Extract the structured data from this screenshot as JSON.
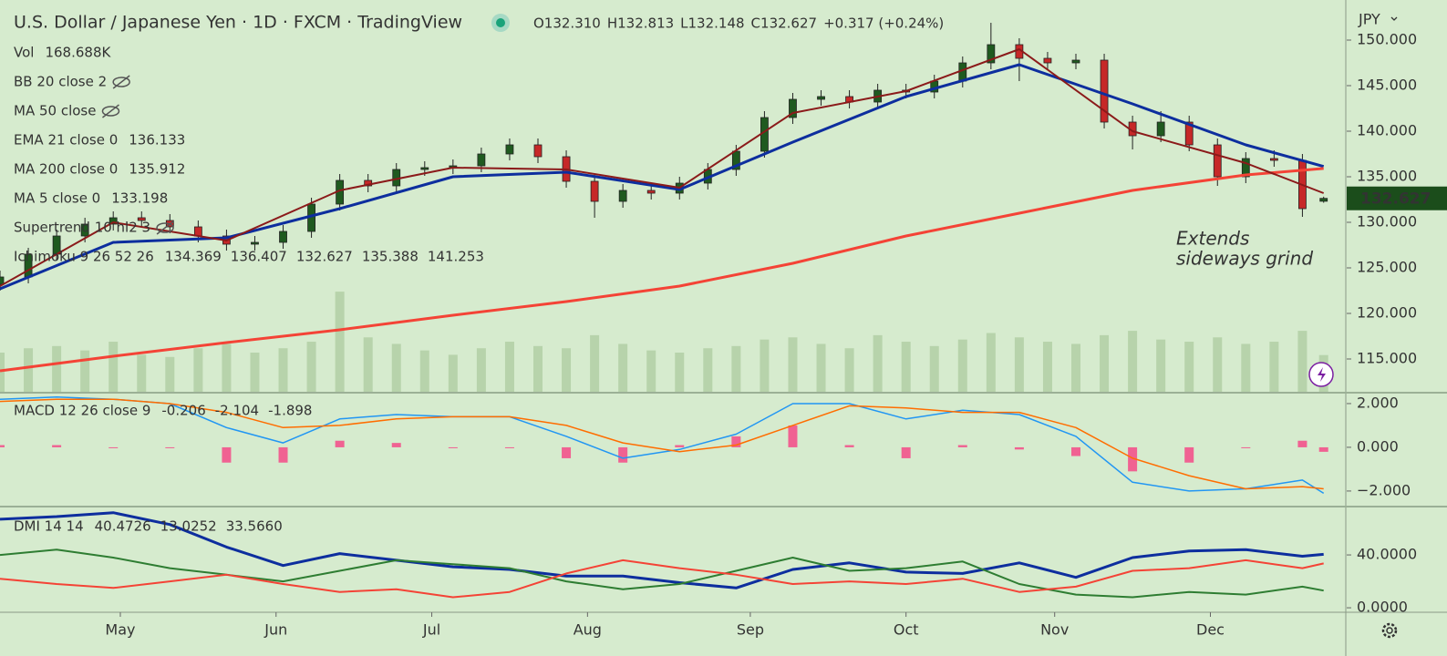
{
  "chart_data": [
    {
      "type": "candlestick",
      "title": "U.S. Dollar / Japanese Yen · 1D · FXCM · TradingView",
      "header_labels": [
        "O132.310",
        "H132.813",
        "L132.148",
        "C132.627",
        "+0.317 (+0.24%)"
      ],
      "currency": "JPY",
      "last_label": "132.627",
      "annotation": [
        "Extends",
        "sideways grind"
      ],
      "xlim": [
        0,
        190
      ],
      "ylim": [
        111.4,
        154.4
      ],
      "vlim": [
        0,
        1800
      ],
      "yticks": [
        {
          "value": 115,
          "label": "115.000"
        },
        {
          "value": 120,
          "label": "120.000"
        },
        {
          "value": 125,
          "label": "125.000"
        },
        {
          "value": 130,
          "label": "130.000"
        },
        {
          "value": 135,
          "label": "135.000"
        },
        {
          "value": 140,
          "label": "140.000"
        },
        {
          "value": 145,
          "label": "145.000"
        },
        {
          "value": 150,
          "label": "150.000"
        }
      ],
      "up_color": "#1f5a1f",
      "down_color": "#c62828",
      "x": [
        0,
        4,
        8,
        12,
        16,
        20,
        24,
        28,
        32,
        36,
        40,
        44,
        48,
        52,
        56,
        60,
        64,
        68,
        72,
        76,
        80,
        84,
        88,
        92,
        96,
        100,
        104,
        108,
        112,
        116,
        120,
        124,
        128,
        132,
        136,
        140,
        144,
        148,
        152,
        156,
        160,
        164,
        168,
        172,
        176,
        180,
        184,
        187
      ],
      "open": [
        123.2,
        124.0,
        126.5,
        128.5,
        129.8,
        130.5,
        130.2,
        129.5,
        128.5,
        127.6,
        127.8,
        129.0,
        132.0,
        134.6,
        134.0,
        135.8,
        136.0,
        136.2,
        137.5,
        138.5,
        137.2,
        134.5,
        132.3,
        133.5,
        133.2,
        134.3,
        135.8,
        137.8,
        141.5,
        143.5,
        143.8,
        143.2,
        144.5,
        144.3,
        145.5,
        147.5,
        149.5,
        148.0,
        147.5,
        147.8,
        141.0,
        139.5,
        141.0,
        138.5,
        135.0,
        137.0,
        136.8,
        132.31
      ],
      "high": [
        124.7,
        127.2,
        129.2,
        130.5,
        131.2,
        131.2,
        130.9,
        130.2,
        129.2,
        128.5,
        129.7,
        132.7,
        135.3,
        135.3,
        136.5,
        136.7,
        136.9,
        138.2,
        139.2,
        139.2,
        137.9,
        135.2,
        134.2,
        134.2,
        135.0,
        136.5,
        138.5,
        142.2,
        144.2,
        144.5,
        144.5,
        145.2,
        145.2,
        146.2,
        148.2,
        151.9,
        150.2,
        148.7,
        148.5,
        148.5,
        141.7,
        142.2,
        141.7,
        139.2,
        137.7,
        137.9,
        137.5,
        132.813
      ],
      "low": [
        122.5,
        123.3,
        125.8,
        127.8,
        129.1,
        129.5,
        128.8,
        127.8,
        126.9,
        126.9,
        127.1,
        128.3,
        131.3,
        133.3,
        133.3,
        135.1,
        135.3,
        135.5,
        136.8,
        136.5,
        133.8,
        130.5,
        131.6,
        132.5,
        132.5,
        133.6,
        135.1,
        137.1,
        140.8,
        142.8,
        142.5,
        142.5,
        143.6,
        143.6,
        144.8,
        146.8,
        145.5,
        146.8,
        146.8,
        140.3,
        138.0,
        138.8,
        137.8,
        134.0,
        134.3,
        136.1,
        130.6,
        132.148
      ],
      "close": [
        124.0,
        126.5,
        128.5,
        129.8,
        130.5,
        130.2,
        129.5,
        128.5,
        127.6,
        127.8,
        129.0,
        132.0,
        134.6,
        134.0,
        135.8,
        136.0,
        136.2,
        137.5,
        138.5,
        137.2,
        134.5,
        132.3,
        133.5,
        133.2,
        134.3,
        135.8,
        137.8,
        141.5,
        143.5,
        143.8,
        143.2,
        144.5,
        144.3,
        145.5,
        147.5,
        149.5,
        148.0,
        147.5,
        147.8,
        141.0,
        139.5,
        141.0,
        138.5,
        135.0,
        137.0,
        136.8,
        131.5,
        132.627
      ],
      "series": [
        {
          "name": "Vol",
          "kind": "bar",
          "axis": "volume",
          "color": "#b7d3ab",
          "label_color": "#1b7a1b",
          "value_label": "168.688K",
          "values": [
            180,
            200,
            210,
            190,
            230,
            170,
            160,
            200,
            220,
            180,
            200,
            230,
            460,
            250,
            220,
            190,
            170,
            200,
            230,
            210,
            200,
            260,
            220,
            190,
            180,
            200,
            210,
            240,
            250,
            220,
            200,
            260,
            230,
            210,
            240,
            270,
            250,
            230,
            220,
            260,
            280,
            240,
            230,
            250,
            220,
            230,
            280,
            168.688
          ]
        },
        {
          "name": "BB 20 close 2",
          "hidden": true
        },
        {
          "name": "MA 50 close",
          "hidden": true
        },
        {
          "name": "EMA 21 close 0",
          "kind": "line",
          "color": "#0d2e9e",
          "value_label": "136.133",
          "x": [
            0,
            16,
            32,
            48,
            64,
            80,
            96,
            112,
            128,
            144,
            160,
            176,
            187
          ],
          "values": [
            122.7,
            127.8,
            128.3,
            131.5,
            135.0,
            135.5,
            133.6,
            138.8,
            143.8,
            147.3,
            143.0,
            138.5,
            136.133
          ]
        },
        {
          "name": "MA 200 close 0",
          "kind": "line",
          "color": "#f44336",
          "value_label": "135.912",
          "x": [
            0,
            16,
            32,
            48,
            64,
            80,
            96,
            112,
            128,
            144,
            160,
            176,
            187
          ],
          "values": [
            113.7,
            115.3,
            116.8,
            118.2,
            119.8,
            121.3,
            123.0,
            125.5,
            128.5,
            131.0,
            133.5,
            135.2,
            135.912
          ]
        },
        {
          "name": "MA 5 close 0",
          "kind": "line",
          "color": "#8b1a1a",
          "value_label": "133.198",
          "x": [
            0,
            16,
            32,
            48,
            64,
            80,
            96,
            112,
            128,
            144,
            160,
            176,
            187
          ],
          "values": [
            123.0,
            130.0,
            128.0,
            133.5,
            136.0,
            135.8,
            133.8,
            142.0,
            144.4,
            149.0,
            140.0,
            136.5,
            133.198
          ]
        },
        {
          "name": "Supertrend 10 hl2 3",
          "hidden": true
        },
        {
          "name": "Ichimoku 9 26 52 26",
          "value_labels": [
            "134.369",
            "136.407",
            "132.627",
            "135.388",
            "141.253"
          ],
          "label_colors": [
            "#2962ff",
            "#b71c1c",
            "#43a047",
            "#a5d6a7",
            "#ef9a9a"
          ]
        }
      ]
    },
    {
      "type": "line",
      "legend": "MACD 12 26 close 9",
      "xlim": [
        0,
        190
      ],
      "ylim": [
        -2.67,
        2.54
      ],
      "yticks": [
        {
          "value": 2,
          "label": "2.000"
        },
        {
          "value": 0,
          "label": "0.000"
        },
        {
          "value": -2,
          "label": "−2.000"
        }
      ],
      "series": [
        {
          "kind": "bar",
          "color": "#f06292",
          "value_label": "-0.206",
          "x": [
            0,
            8,
            16,
            24,
            32,
            40,
            48,
            56,
            64,
            72,
            80,
            88,
            96,
            104,
            112,
            120,
            128,
            136,
            144,
            152,
            160,
            168,
            176,
            184,
            187
          ],
          "values": [
            0.1,
            0.1,
            0,
            0,
            -0.7,
            -0.7,
            0.3,
            0.2,
            0,
            0,
            -0.5,
            -0.7,
            0.1,
            0.5,
            1.0,
            0.1,
            -0.5,
            0.1,
            -0.1,
            -0.4,
            -1.1,
            -0.7,
            0,
            0.3,
            -0.206
          ]
        },
        {
          "kind": "line",
          "color": "#2196f3",
          "value_label": "-2.104",
          "x": [
            0,
            8,
            16,
            24,
            32,
            40,
            48,
            56,
            64,
            72,
            80,
            88,
            96,
            104,
            112,
            120,
            128,
            136,
            144,
            152,
            160,
            168,
            176,
            184,
            187
          ],
          "values": [
            2.2,
            2.3,
            2.2,
            2.0,
            0.9,
            0.2,
            1.3,
            1.5,
            1.4,
            1.4,
            0.5,
            -0.5,
            -0.1,
            0.6,
            2.0,
            2.0,
            1.3,
            1.7,
            1.5,
            0.5,
            -1.6,
            -2.0,
            -1.9,
            -1.5,
            -2.104
          ]
        },
        {
          "kind": "line",
          "color": "#ff6d00",
          "value_label": "-1.898",
          "x": [
            0,
            8,
            16,
            24,
            32,
            40,
            48,
            56,
            64,
            72,
            80,
            88,
            96,
            104,
            112,
            120,
            128,
            136,
            144,
            152,
            160,
            168,
            176,
            184,
            187
          ],
          "values": [
            2.1,
            2.2,
            2.2,
            2.0,
            1.6,
            0.9,
            1.0,
            1.3,
            1.4,
            1.4,
            1.0,
            0.2,
            -0.2,
            0.1,
            1.0,
            1.9,
            1.8,
            1.6,
            1.6,
            0.9,
            -0.5,
            -1.3,
            -1.9,
            -1.8,
            -1.898
          ]
        }
      ]
    },
    {
      "type": "line",
      "legend": "DMI 14 14",
      "xlim": [
        0,
        190
      ],
      "ylim": [
        -3.4,
        75.9
      ],
      "yticks": [
        {
          "value": 40,
          "label": "40.0000"
        },
        {
          "value": 0,
          "label": "0.0000"
        }
      ],
      "xticks": [
        {
          "value": 17,
          "label": "May"
        },
        {
          "value": 39,
          "label": "Jun"
        },
        {
          "value": 61,
          "label": "Jul"
        },
        {
          "value": 83,
          "label": "Aug"
        },
        {
          "value": 106,
          "label": "Sep"
        },
        {
          "value": 128,
          "label": "Oct"
        },
        {
          "value": 149,
          "label": "Nov"
        },
        {
          "value": 171,
          "label": "Dec"
        }
      ],
      "series": [
        {
          "kind": "line",
          "color": "#0d2e9e",
          "value_label": "40.4726",
          "x": [
            0,
            8,
            16,
            24,
            32,
            40,
            48,
            56,
            64,
            72,
            80,
            88,
            96,
            104,
            112,
            120,
            128,
            136,
            144,
            152,
            160,
            168,
            176,
            184,
            187
          ],
          "values": [
            67,
            69,
            72,
            63,
            46,
            32,
            41,
            36,
            31,
            29,
            24,
            24,
            19,
            15,
            29,
            34,
            27,
            26,
            34,
            23,
            38,
            43,
            44,
            39,
            40.4726
          ]
        },
        {
          "kind": "line",
          "color": "#2e7d32",
          "value_label": "13.0252",
          "x": [
            0,
            8,
            16,
            24,
            32,
            40,
            48,
            56,
            64,
            72,
            80,
            88,
            96,
            104,
            112,
            120,
            128,
            136,
            144,
            152,
            160,
            168,
            176,
            184,
            187
          ],
          "values": [
            40,
            44,
            38,
            30,
            25,
            20,
            28,
            36,
            33,
            30,
            20,
            14,
            18,
            28,
            38,
            28,
            30,
            35,
            18,
            10,
            8,
            12,
            10,
            16,
            13.0252
          ]
        },
        {
          "kind": "line",
          "color": "#f44336",
          "value_label": "33.5660",
          "x": [
            0,
            8,
            16,
            24,
            32,
            40,
            48,
            56,
            64,
            72,
            80,
            88,
            96,
            104,
            112,
            120,
            128,
            136,
            144,
            152,
            160,
            168,
            176,
            184,
            187
          ],
          "values": [
            22,
            18,
            15,
            20,
            25,
            18,
            12,
            14,
            8,
            12,
            26,
            36,
            30,
            25,
            18,
            20,
            18,
            22,
            12,
            16,
            28,
            30,
            36,
            30,
            33.566
          ]
        }
      ]
    }
  ]
}
